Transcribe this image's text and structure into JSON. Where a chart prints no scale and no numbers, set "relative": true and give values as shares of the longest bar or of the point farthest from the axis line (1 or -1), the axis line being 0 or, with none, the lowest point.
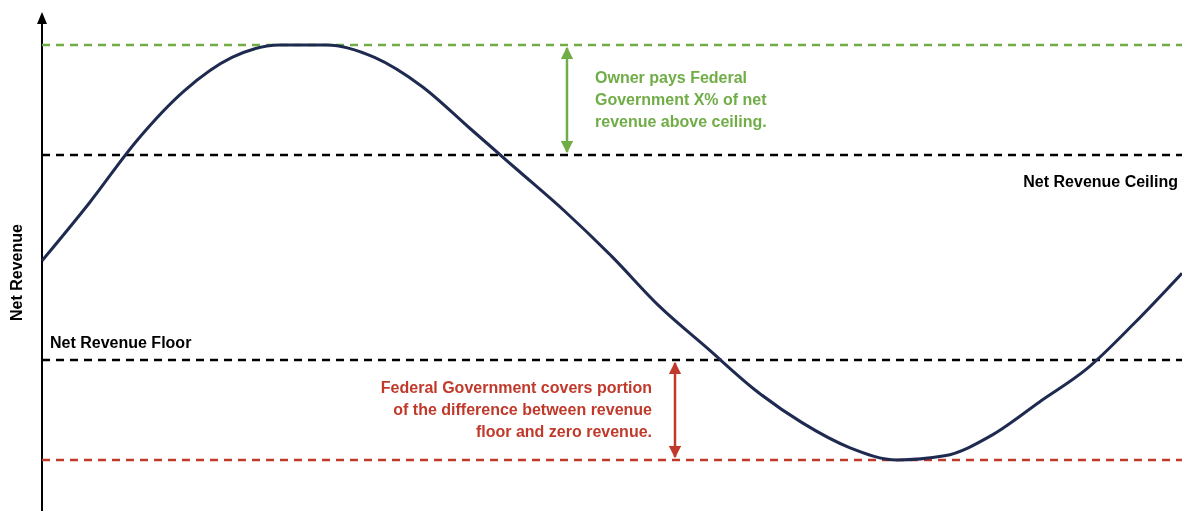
{
  "chart_data": {
    "type": "line",
    "relative": true,
    "ylabel": "Net Revenue",
    "categories": [
      null,
      null,
      null,
      null,
      null,
      null,
      null,
      null,
      null,
      null,
      null,
      null,
      null,
      null,
      null,
      null,
      null,
      null,
      null,
      null,
      null,
      null,
      null,
      null,
      null
    ],
    "series": [
      {
        "color": "#1f2a50",
        "values": [
          0.48,
          0.62,
          0.77,
          0.89,
          0.97,
          1.0,
          1.0,
          0.97,
          0.9,
          0.8,
          0.7,
          0.6,
          0.49,
          0.37,
          0.27,
          0.17,
          0.09,
          0.03,
          0.0,
          0.01,
          0.06,
          0.14,
          0.22,
          0.33,
          0.45
        ]
      }
    ],
    "ref_lines": [
      {
        "axis": "y",
        "value": 1.0,
        "color": "#70ad47",
        "line_style": "dashed"
      },
      {
        "axis": "y",
        "value": 0.735,
        "label": "Net Revenue Ceiling",
        "color": "#000000",
        "line_style": "dashed"
      },
      {
        "axis": "y",
        "value": 0.241,
        "label": "Net Revenue Floor",
        "color": "#000000",
        "line_style": "dashed"
      },
      {
        "axis": "y",
        "value": 0.0,
        "color": "#c0392b",
        "line_style": "dashed"
      }
    ],
    "annotations": [
      "Owner pays Federal Government X% of net revenue above ceiling.",
      "Federal Government covers portion of the difference between revenue floor and zero revenue."
    ]
  }
}
